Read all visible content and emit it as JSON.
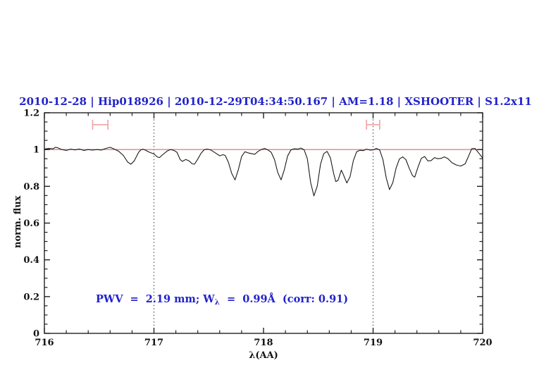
{
  "title": {
    "text": "2010-12-28 | Hip018926 | 2010-12-29T04:34:50.167 | AM=1.18 | XSHOOTER | S1.2x11"
  },
  "annotation": {
    "part1": "PWV  =  2.19 mm; W",
    "lambda_sub": "λ",
    "part2": "  =  0.99Å  (corr: 0.91)"
  },
  "colors": {
    "title_blue": "#2222cc",
    "continuum_red": "#e06666",
    "marker_pink": "#f2a2a2",
    "spectrum_black": "#1a1a1a",
    "dotted_gray": "#3a3a3a",
    "frame": "#111111"
  },
  "chart_data": {
    "type": "line",
    "title": "2010-12-28 | Hip018926 | 2010-12-29T04:34:50.167 | AM=1.18 | XSHOOTER | S1.2x11",
    "xlabel": "λ(AA)",
    "ylabel": "norm. flux",
    "xlim": [
      716,
      720
    ],
    "ylim": [
      0,
      1.2
    ],
    "grid": false,
    "legend": "none",
    "x_major_ticks": [
      716,
      717,
      718,
      719,
      720
    ],
    "x_tick_labels": [
      "716",
      "717",
      "718",
      "719",
      "720"
    ],
    "x_minor_step": 0.2,
    "y_major_ticks": [
      0,
      0.2,
      0.4,
      0.6,
      0.8,
      1,
      1.2
    ],
    "y_tick_labels": [
      "0",
      "0.2",
      "0.4",
      "0.6",
      "0.8",
      "1",
      "1.2"
    ],
    "y_minor_step": 0.05,
    "reference_line": {
      "y": 1.0
    },
    "dotted_vlines": [
      717,
      719
    ],
    "range_markers": [
      {
        "x_start": 716.44,
        "x_end": 716.58,
        "y": 1.135,
        "cap_half_height": 0.027
      },
      {
        "x_start": 718.94,
        "x_end": 719.06,
        "y": 1.135,
        "cap_half_height": 0.027
      }
    ],
    "series": [
      {
        "name": "spectrum",
        "points": [
          [
            716.0,
            1.002
          ],
          [
            716.04,
            1.006
          ],
          [
            716.08,
            1.004
          ],
          [
            716.1,
            1.012
          ],
          [
            716.12,
            1.01
          ],
          [
            716.16,
            1.0
          ],
          [
            716.2,
            0.995
          ],
          [
            716.24,
            1.002
          ],
          [
            716.28,
            0.998
          ],
          [
            716.32,
            1.003
          ],
          [
            716.36,
            0.995
          ],
          [
            716.4,
            1.0
          ],
          [
            716.44,
            0.997
          ],
          [
            716.48,
            1.0
          ],
          [
            716.52,
            0.997
          ],
          [
            716.56,
            1.006
          ],
          [
            716.6,
            1.012
          ],
          [
            716.64,
            1.002
          ],
          [
            716.68,
            0.99
          ],
          [
            716.72,
            0.968
          ],
          [
            716.76,
            0.932
          ],
          [
            716.79,
            0.92
          ],
          [
            716.82,
            0.938
          ],
          [
            716.86,
            0.985
          ],
          [
            716.88,
            0.998
          ],
          [
            716.9,
            1.002
          ],
          [
            716.92,
            0.997
          ],
          [
            716.96,
            0.985
          ],
          [
            717.0,
            0.976
          ],
          [
            717.03,
            0.96
          ],
          [
            717.05,
            0.956
          ],
          [
            717.08,
            0.972
          ],
          [
            717.12,
            0.992
          ],
          [
            717.15,
            1.0
          ],
          [
            717.18,
            0.996
          ],
          [
            717.21,
            0.985
          ],
          [
            717.24,
            0.945
          ],
          [
            717.26,
            0.936
          ],
          [
            717.29,
            0.946
          ],
          [
            717.32,
            0.938
          ],
          [
            717.35,
            0.922
          ],
          [
            717.37,
            0.92
          ],
          [
            717.4,
            0.948
          ],
          [
            717.43,
            0.98
          ],
          [
            717.46,
            1.0
          ],
          [
            717.49,
            1.002
          ],
          [
            717.52,
            0.997
          ],
          [
            717.56,
            0.982
          ],
          [
            717.6,
            0.966
          ],
          [
            717.63,
            0.972
          ],
          [
            717.65,
            0.968
          ],
          [
            717.68,
            0.93
          ],
          [
            717.71,
            0.87
          ],
          [
            717.74,
            0.835
          ],
          [
            717.77,
            0.89
          ],
          [
            717.8,
            0.962
          ],
          [
            717.83,
            0.988
          ],
          [
            717.86,
            0.982
          ],
          [
            717.89,
            0.978
          ],
          [
            717.92,
            0.974
          ],
          [
            717.95,
            0.99
          ],
          [
            717.98,
            1.0
          ],
          [
            718.01,
            1.006
          ],
          [
            718.04,
            0.998
          ],
          [
            718.07,
            0.985
          ],
          [
            718.1,
            0.945
          ],
          [
            718.13,
            0.875
          ],
          [
            718.16,
            0.835
          ],
          [
            718.19,
            0.89
          ],
          [
            718.22,
            0.965
          ],
          [
            718.25,
            0.998
          ],
          [
            718.28,
            1.004
          ],
          [
            718.31,
            1.002
          ],
          [
            718.34,
            1.008
          ],
          [
            718.37,
            1.0
          ],
          [
            718.4,
            0.95
          ],
          [
            718.43,
            0.82
          ],
          [
            718.46,
            0.748
          ],
          [
            718.49,
            0.8
          ],
          [
            718.52,
            0.92
          ],
          [
            718.55,
            0.978
          ],
          [
            718.58,
            0.99
          ],
          [
            718.61,
            0.955
          ],
          [
            718.64,
            0.87
          ],
          [
            718.66,
            0.826
          ],
          [
            718.68,
            0.832
          ],
          [
            718.71,
            0.888
          ],
          [
            718.73,
            0.862
          ],
          [
            718.76,
            0.818
          ],
          [
            718.79,
            0.852
          ],
          [
            718.82,
            0.94
          ],
          [
            718.85,
            0.988
          ],
          [
            718.88,
            0.996
          ],
          [
            718.91,
            0.994
          ],
          [
            718.94,
            1.002
          ],
          [
            718.97,
            0.997
          ],
          [
            719.0,
            0.998
          ],
          [
            719.03,
            1.006
          ],
          [
            719.06,
            0.998
          ],
          [
            719.09,
            0.945
          ],
          [
            719.12,
            0.845
          ],
          [
            719.15,
            0.782
          ],
          [
            719.18,
            0.82
          ],
          [
            719.21,
            0.9
          ],
          [
            719.24,
            0.948
          ],
          [
            719.27,
            0.96
          ],
          [
            719.3,
            0.945
          ],
          [
            719.33,
            0.898
          ],
          [
            719.36,
            0.858
          ],
          [
            719.38,
            0.85
          ],
          [
            719.41,
            0.905
          ],
          [
            719.44,
            0.952
          ],
          [
            719.47,
            0.962
          ],
          [
            719.5,
            0.938
          ],
          [
            719.53,
            0.94
          ],
          [
            719.56,
            0.956
          ],
          [
            719.59,
            0.95
          ],
          [
            719.62,
            0.952
          ],
          [
            719.65,
            0.96
          ],
          [
            719.68,
            0.952
          ],
          [
            719.72,
            0.928
          ],
          [
            719.76,
            0.916
          ],
          [
            719.8,
            0.91
          ],
          [
            719.84,
            0.922
          ],
          [
            719.87,
            0.962
          ],
          [
            719.9,
            1.004
          ],
          [
            719.93,
            1.006
          ],
          [
            719.96,
            0.984
          ],
          [
            720.0,
            0.954
          ]
        ]
      }
    ]
  }
}
